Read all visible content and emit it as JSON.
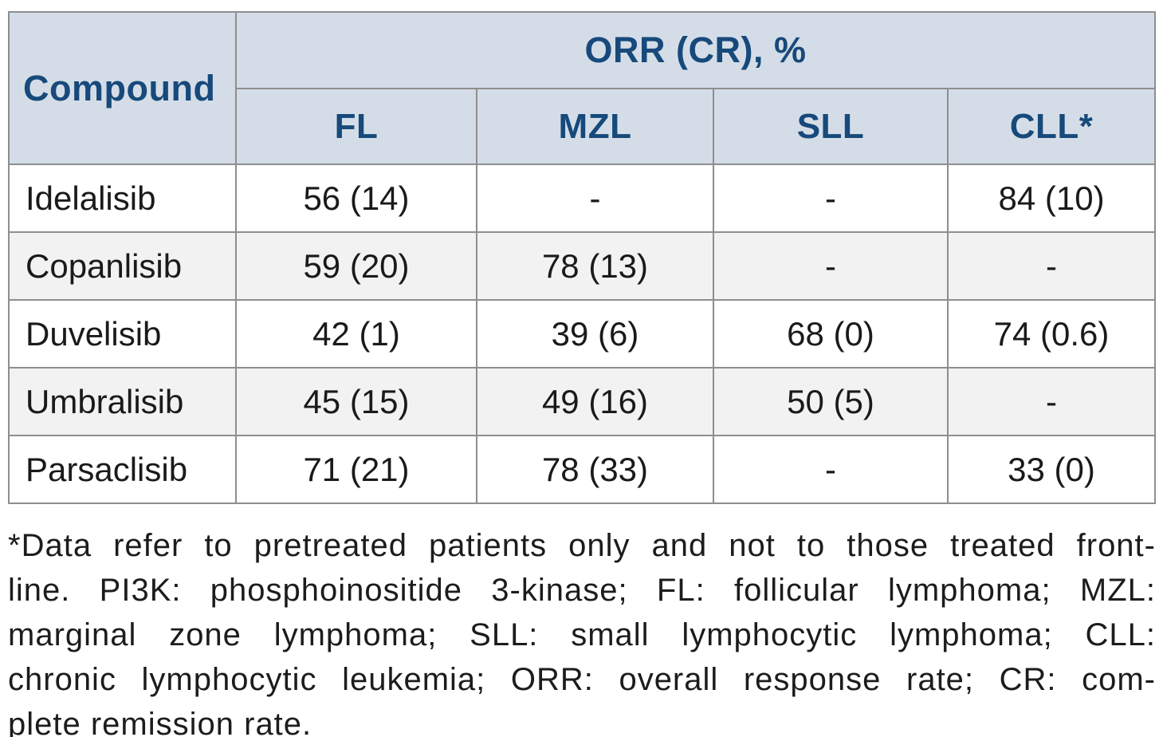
{
  "table": {
    "corner_header": "Compound",
    "group_header": "ORR (CR), %",
    "sub_headers": [
      "FL",
      "MZL",
      "SLL",
      "CLL*"
    ],
    "rows": [
      {
        "compound": "Idelalisib",
        "values": [
          "56 (14)",
          "-",
          "-",
          "84 (10)"
        ]
      },
      {
        "compound": "Copanlisib",
        "values": [
          "59 (20)",
          "78 (13)",
          "-",
          "-"
        ]
      },
      {
        "compound": "Duvelisib",
        "values": [
          "42 (1)",
          "39 (6)",
          "68 (0)",
          "74 (0.6)"
        ]
      },
      {
        "compound": "Umbralisib",
        "values": [
          "45 (15)",
          "49 (16)",
          "50 (5)",
          "-"
        ]
      },
      {
        "compound": "Parsaclisib",
        "values": [
          "71 (21)",
          "78 (33)",
          "-",
          "33 (0)"
        ]
      }
    ]
  },
  "footnote": {
    "lines": [
      "*Data refer to pretreated patients only and not to those treated front-",
      "line. PI3K: phosphoinositide 3-kinase; FL: follicular lymphoma; MZL:",
      "marginal zone lymphoma; SLL: small lymphocytic lymphoma; CLL:",
      "chronic lymphocytic leukemia; ORR: overall response rate; CR: com-",
      "plete remission rate."
    ],
    "full_text": "*Data refer to pretreated patients only and not to those treated front-line. PI3K: phosphoinositide 3-kinase; FL: follicular lymphoma; MZL: marginal zone lymphoma; SLL: small lymphocytic lymphoma; CLL: chronic lymphocytic leukemia; ORR: overall response rate; CR: complete remission rate."
  },
  "colors": {
    "header_bg": "#d4dde7",
    "header_text": "#17497b",
    "border": "#8e8e8e",
    "row_alt_bg": "#f2f2f2",
    "body_text": "#1a1a1a",
    "page_bg": "#ffffff"
  }
}
